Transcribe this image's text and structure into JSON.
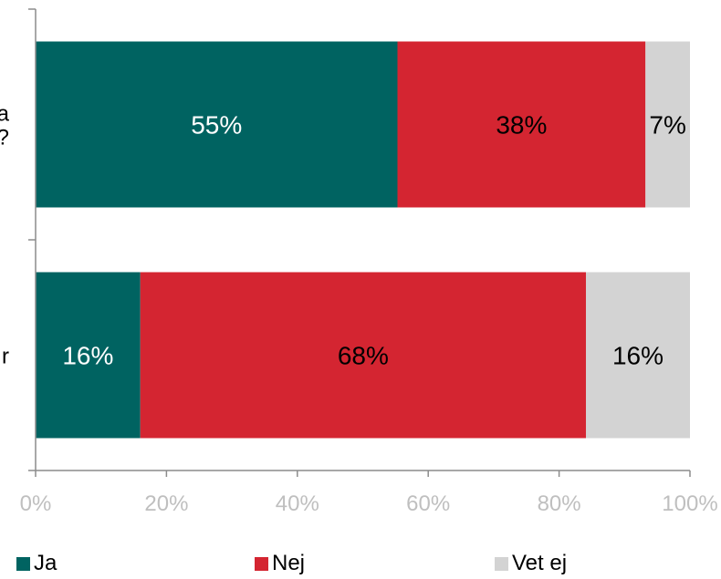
{
  "chart_data": {
    "type": "bar",
    "orientation": "horizontal",
    "stacked": true,
    "percent": true,
    "categories": [
      "",
      ""
    ],
    "category_labels_visible": [
      "a\n?",
      "r"
    ],
    "series": [
      {
        "name": "Ja",
        "values": [
          55.3,
          16
        ],
        "labels": [
          "55%",
          "16%"
        ],
        "color": "#006361",
        "label_color": "#ffffff"
      },
      {
        "name": "Nej",
        "values": [
          37.9,
          68.1
        ],
        "labels": [
          "38%",
          "68%"
        ],
        "color": "#d42531",
        "label_color": "#000000"
      },
      {
        "name": "Vet ej",
        "values": [
          6.8,
          15.9
        ],
        "labels": [
          "7%",
          "16%"
        ],
        "color": "#d3d3d3",
        "label_color": "#000000"
      }
    ],
    "xlim": [
      0,
      100
    ],
    "x_ticks": [
      "0%",
      "20%",
      "40%",
      "60%",
      "80%",
      "100%"
    ],
    "tick_label_color": "#bfbfbf",
    "grid": false,
    "legend_position": "bottom",
    "title": "",
    "xlabel": "",
    "ylabel": ""
  }
}
